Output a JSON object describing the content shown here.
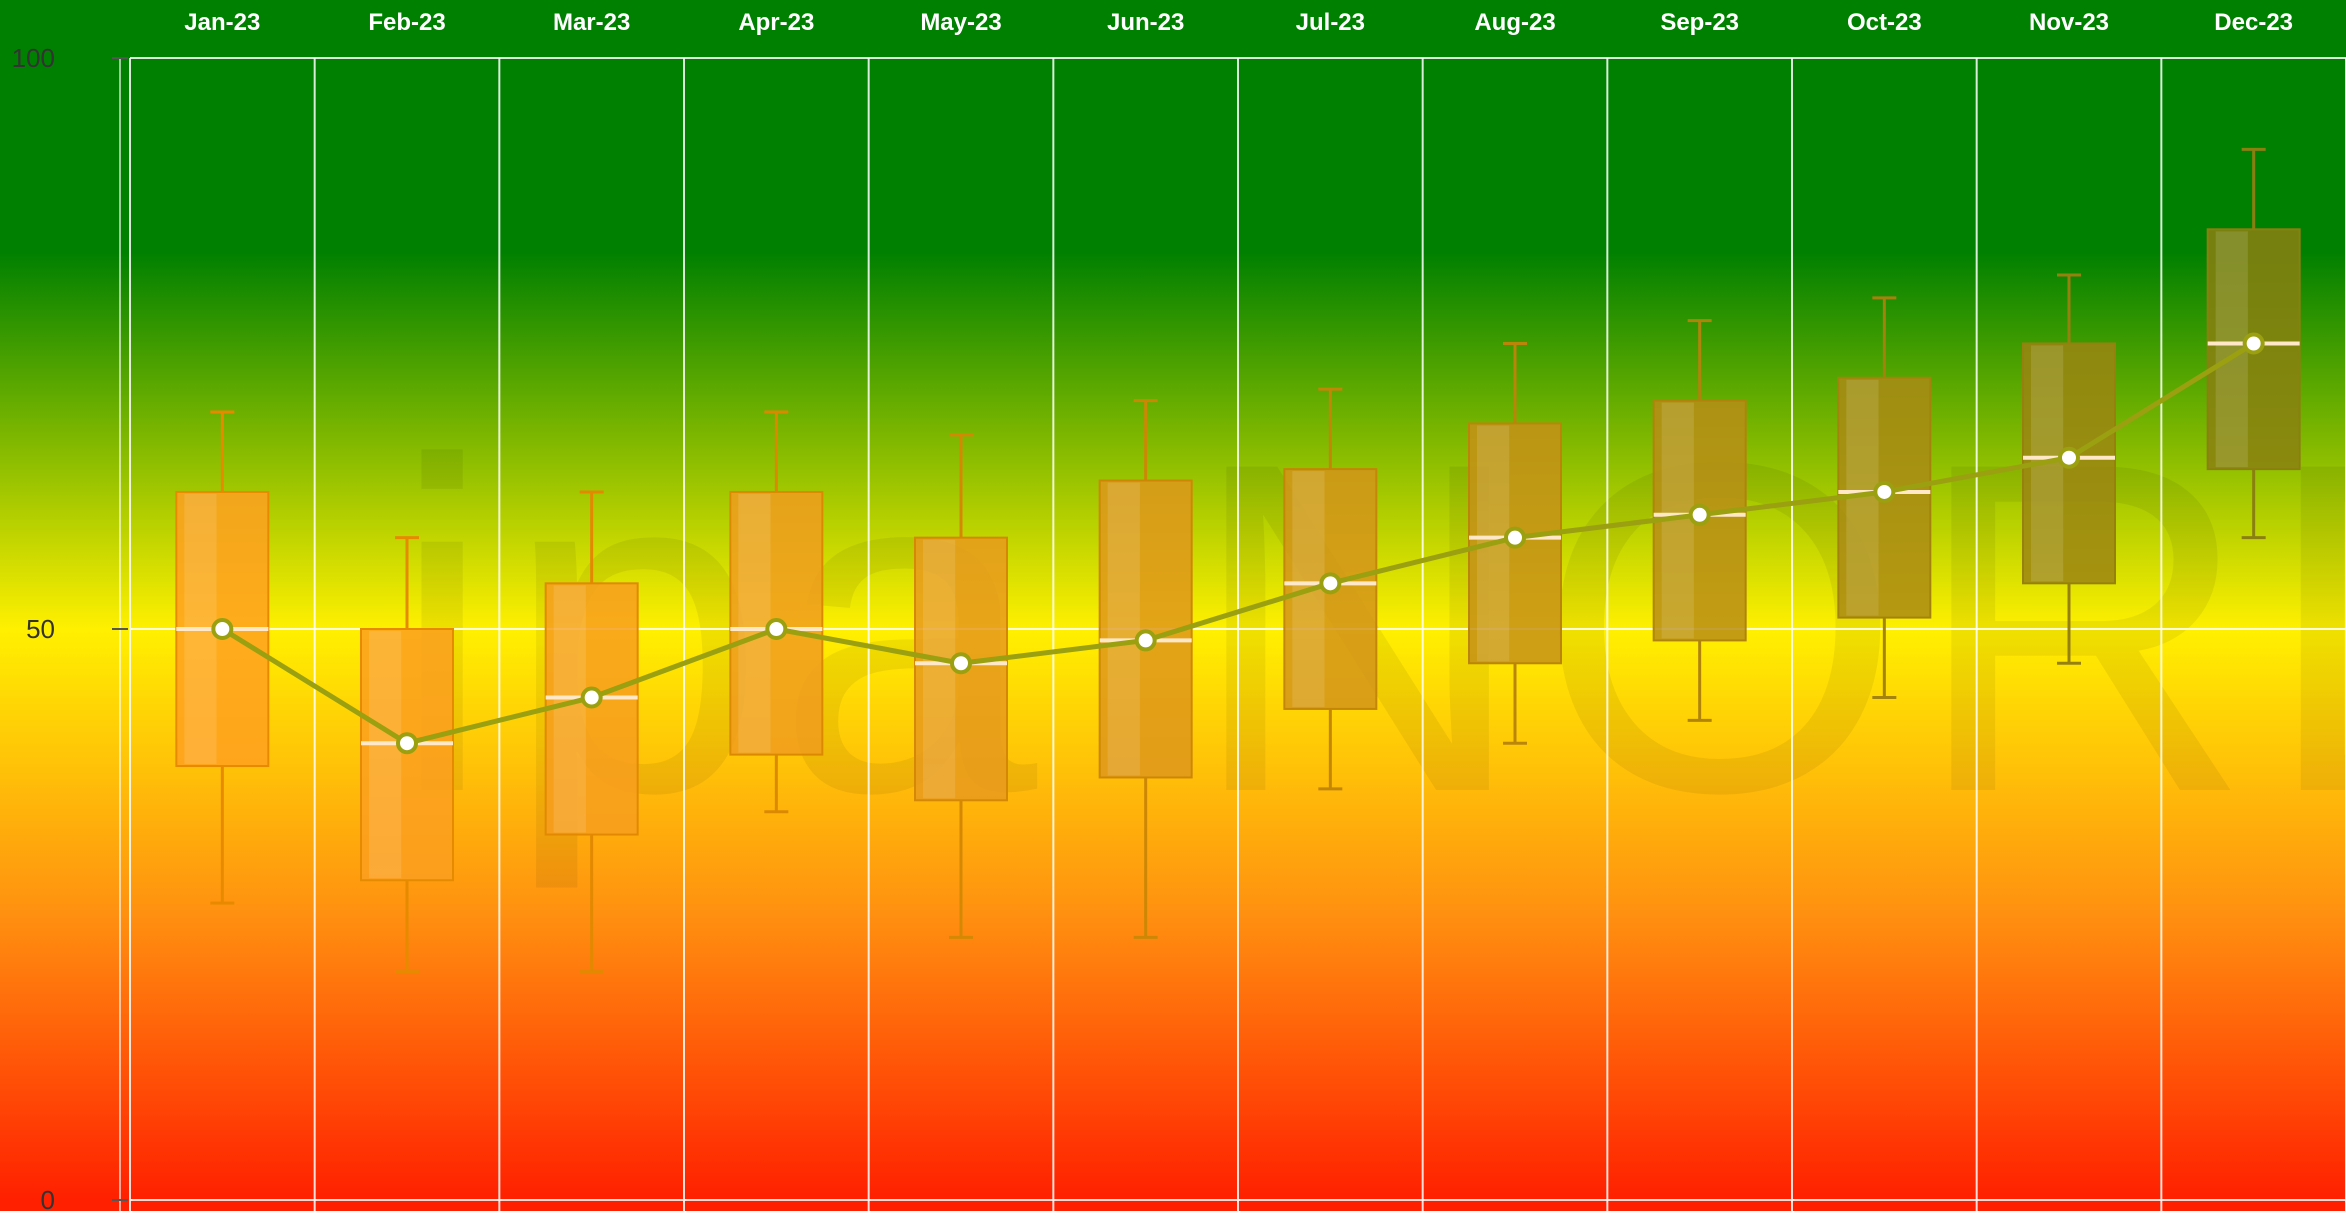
{
  "chart_data": {
    "type": "box",
    "title": "",
    "xlabel": "",
    "ylabel": "",
    "categories": [
      "Jan-23",
      "Feb-23",
      "Mar-23",
      "Apr-23",
      "May-23",
      "Jun-23",
      "Jul-23",
      "Aug-23",
      "Sep-23",
      "Oct-23",
      "Nov-23",
      "Dec-23"
    ],
    "series": [
      {
        "type": "box",
        "min": [
          26,
          20,
          20,
          34,
          23,
          23,
          36,
          40,
          42,
          44,
          47,
          58
        ],
        "q1": [
          38,
          28,
          32,
          39,
          35,
          37,
          43,
          47,
          49,
          51,
          54,
          64
        ],
        "median": [
          50,
          40,
          44,
          50,
          47,
          49,
          54,
          58,
          60,
          62,
          65,
          75
        ],
        "q3": [
          62,
          50,
          54,
          62,
          58,
          63,
          64,
          68,
          70,
          72,
          75,
          85
        ],
        "max": [
          69,
          58,
          62,
          69,
          67,
          70,
          71,
          75,
          77,
          79,
          81,
          92
        ]
      },
      {
        "type": "line",
        "values": [
          50,
          40,
          44,
          50,
          47,
          49,
          54,
          58,
          60,
          62,
          65,
          75
        ]
      }
    ],
    "x_axis_position": "top",
    "y_ticks": [
      "0",
      "50",
      "100"
    ],
    "ylim": [
      0,
      100
    ],
    "grid": true,
    "background_gradient": [
      {
        "value": 100,
        "color": "#008000"
      },
      {
        "value": 83,
        "color": "#008000"
      },
      {
        "value": 50,
        "color": "#fff000"
      },
      {
        "value": 25,
        "color": "#ff9010"
      },
      {
        "value": 0,
        "color": "#ff2000"
      }
    ],
    "colors": {
      "box_low": "#ffa020",
      "box_high": "#8a8010",
      "whisker": "#e88a00",
      "line": "#9aa010",
      "point_fill": "#ffffff",
      "median": "#ffe8c8"
    },
    "watermark": "ipa NORDIC"
  }
}
